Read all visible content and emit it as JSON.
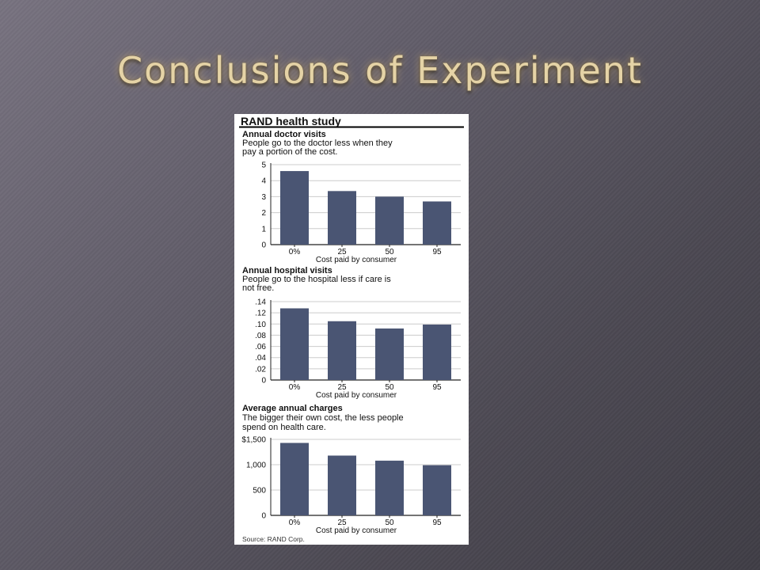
{
  "slide": {
    "title": "Conclusions of Experiment"
  },
  "figure": {
    "heading": "RAND health study",
    "source": "Source: RAND Corp."
  },
  "colors": {
    "bar": "#4a5573",
    "axis": "#222222",
    "grid": "#cccccc",
    "header_rule": "#000000"
  },
  "chart_data": [
    {
      "type": "bar",
      "title": "Annual doctor visits",
      "subtitle_lines": [
        "People go to the doctor less when they",
        "pay a portion of the cost."
      ],
      "categories": [
        "0%",
        "25",
        "50",
        "95"
      ],
      "values": [
        4.6,
        3.35,
        3.0,
        2.7
      ],
      "yticks": [
        0,
        1,
        2,
        3,
        4,
        5
      ],
      "ytick_labels": [
        "0",
        "1",
        "2",
        "3",
        "4",
        "5"
      ],
      "ylim": [
        0,
        5
      ],
      "xlabel": "Cost paid by consumer",
      "grid": true
    },
    {
      "type": "bar",
      "title": "Annual hospital visits",
      "subtitle_lines": [
        "People go to the hospital less if care is",
        "not free."
      ],
      "categories": [
        "0%",
        "25",
        "50",
        "95"
      ],
      "values": [
        0.128,
        0.105,
        0.092,
        0.099
      ],
      "yticks": [
        0,
        0.02,
        0.04,
        0.06,
        0.08,
        0.1,
        0.12,
        0.14
      ],
      "ytick_labels": [
        "0",
        ".02",
        ".04",
        ".06",
        ".08",
        ".10",
        ".12",
        ".14"
      ],
      "ylim": [
        0,
        0.14
      ],
      "xlabel": "Cost paid by consumer",
      "grid": true
    },
    {
      "type": "bar",
      "title": "Average annual charges",
      "subtitle_lines": [
        "The bigger their own cost, the less people",
        "spend on health care."
      ],
      "categories": [
        "0%",
        "25",
        "50",
        "95"
      ],
      "values": [
        1430,
        1180,
        1080,
        990
      ],
      "yticks": [
        0,
        500,
        1000,
        1500
      ],
      "ytick_labels": [
        "0",
        "500",
        "1,000",
        "$1,500"
      ],
      "ylim": [
        0,
        1500
      ],
      "xlabel": "Cost paid by consumer",
      "grid": true
    }
  ]
}
